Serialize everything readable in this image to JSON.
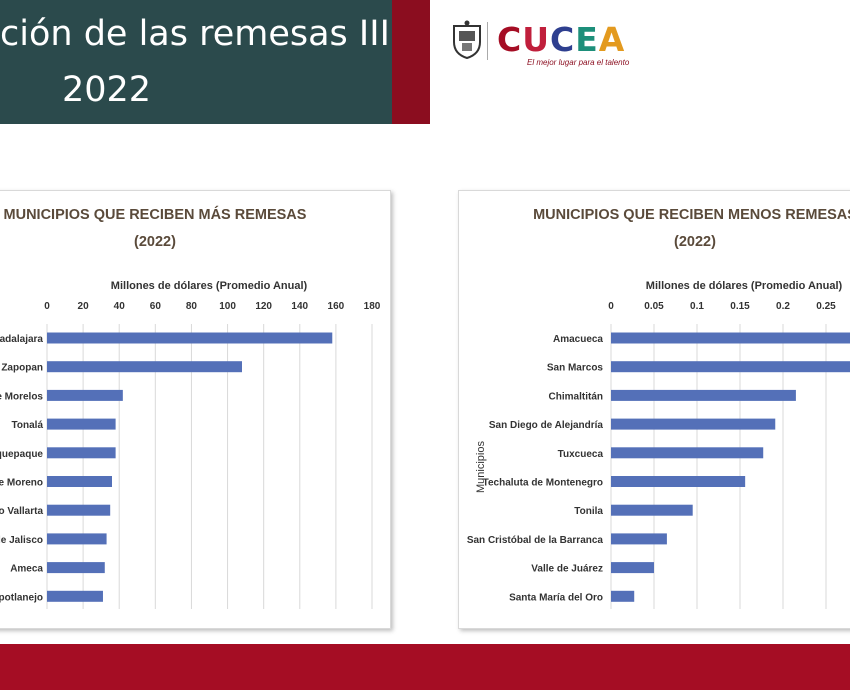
{
  "header": {
    "title_line1": "ción de las remesas III:",
    "title_line2": "2022",
    "logo_text": "CUCEA",
    "logo_tagline": "El mejor lugar para el talento",
    "logo_colors": [
      "#a50d24",
      "#c01f3c",
      "#2e3f8f",
      "#1d8f7a",
      "#e39a1f"
    ]
  },
  "colors": {
    "title_band": "#2b4a4c",
    "accent": "#8b0d1f",
    "bottom_band": "#a50d24",
    "bar": "#5470b8",
    "grid": "#d9d9d9"
  },
  "chart_data": [
    {
      "type": "bar",
      "orientation": "horizontal",
      "title_line1": "MUNICIPIOS QUE RECIBEN MÁS REMESAS",
      "title_line2": "(2022)",
      "xlabel": "Millones de dólares (Promedio Anual)",
      "ylabel": "",
      "xlim": [
        0,
        180
      ],
      "ticks": [
        "0",
        "20",
        "40",
        "60",
        "80",
        "100",
        "120",
        "140",
        "160",
        "180"
      ],
      "categories": [
        "adalajara",
        "Zapopan",
        "e Morelos",
        "Tonalá",
        "quepaque",
        "e Moreno",
        "o Vallarta",
        "de Jalisco",
        "Ameca",
        "potlanejo"
      ],
      "values": [
        158,
        108,
        42,
        38,
        38,
        36,
        35,
        33,
        32,
        31
      ],
      "grid": true
    },
    {
      "type": "bar",
      "orientation": "horizontal",
      "title_line1": "MUNICIPIOS QUE RECIBEN MENOS REMESAS",
      "title_line2": "(2022)",
      "xlabel": "Millones de dólares (Promedio Anual)",
      "ylabel": "Municipios",
      "xlim": [
        0,
        0.3
      ],
      "ticks": [
        "0",
        "0.05",
        "0.1",
        "0.15",
        "0.2",
        "0.25"
      ],
      "categories": [
        "Amacueca",
        "San Marcos",
        "Chimaltitán",
        "San Diego de Alejandría",
        "Tuxcueca",
        "Techaluta de Montenegro",
        "Tonila",
        "San Cristóbal de la Barranca",
        "Valle de Juárez",
        "Santa María del Oro"
      ],
      "values": [
        0.29,
        0.29,
        0.215,
        0.191,
        0.177,
        0.156,
        0.095,
        0.065,
        0.05,
        0.027
      ],
      "grid": true
    }
  ]
}
